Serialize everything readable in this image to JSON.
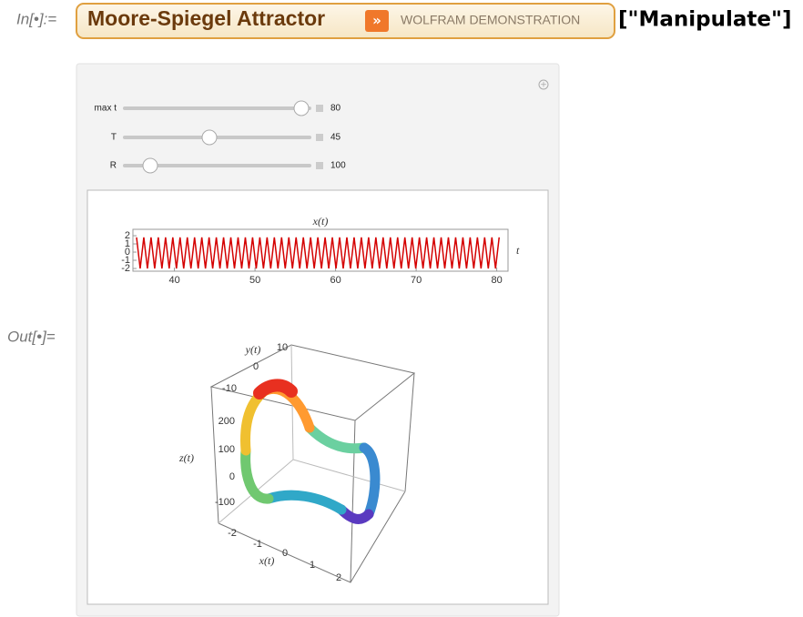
{
  "input_label": "In[•]:=",
  "button": {
    "title": "Moore-Spiegel Attractor",
    "tag": "WOLFRAM DEMONSTRATION"
  },
  "suffix": "[\"Manipulate\"]",
  "controls": [
    {
      "label": "max t",
      "value": 80
    },
    {
      "label": "T",
      "value": 45
    },
    {
      "label": "R",
      "value": 100
    }
  ],
  "output_label": "Out[•]=",
  "chart_data": {
    "type": "line",
    "title": "x(t)",
    "x_label": "t",
    "color": "#d40000",
    "x": [
      35.3,
      35.75,
      36.2,
      36.65,
      37.1,
      37.55,
      38,
      38.45,
      38.9,
      39.35,
      39.8,
      40.25,
      40.7,
      41.15,
      41.6,
      42.05,
      42.5,
      42.95,
      43.4,
      43.85,
      44.3,
      44.75,
      45.2,
      45.65,
      46.1,
      46.55,
      47,
      47.45,
      47.9,
      48.35,
      48.8,
      49.25,
      49.7,
      50.15,
      50.6,
      51.05,
      51.5,
      51.95,
      52.4,
      52.85,
      53.3,
      53.75,
      54.2,
      54.65,
      55.1,
      55.55,
      56,
      56.45,
      56.9,
      57.35,
      57.8,
      58.25,
      58.7,
      59.15,
      59.6,
      60.05,
      60.5,
      60.95,
      61.4,
      61.85,
      62.3,
      62.75,
      63.2,
      63.65,
      64.1,
      64.55,
      65,
      65.45,
      65.9,
      66.35,
      66.8,
      67.25,
      67.7,
      68.15,
      68.6,
      69.05,
      69.5,
      69.95,
      70.4,
      70.85,
      71.3,
      71.75,
      72.2,
      72.65,
      73.1,
      73.55,
      74,
      74.45,
      74.9,
      75.35,
      75.8,
      76.25,
      76.7,
      77.15,
      77.6,
      78.05,
      78.5,
      78.95,
      79.4,
      79.85,
      80.3
    ],
    "values": [
      1.8,
      -2,
      1.8,
      -2,
      1.8,
      -2,
      1.8,
      -2,
      1.8,
      -2,
      1.8,
      -2,
      1.8,
      -2,
      1.8,
      -2,
      1.8,
      -2,
      1.8,
      -2,
      1.8,
      -2,
      1.8,
      -2,
      1.8,
      -2,
      1.8,
      -2,
      1.8,
      -2,
      1.8,
      -2,
      1.8,
      -2,
      1.8,
      -2,
      1.8,
      -2,
      1.8,
      -2,
      1.8,
      -2,
      1.8,
      -2,
      1.8,
      -2,
      1.8,
      -2,
      1.8,
      -2,
      1.8,
      -2,
      1.8,
      -2,
      1.8,
      -2,
      1.8,
      -2,
      1.8,
      -2,
      1.8,
      -2,
      1.8,
      -2,
      1.8,
      -2,
      1.8,
      -2,
      1.8,
      -2,
      1.8,
      -2,
      1.8,
      -2,
      1.8,
      -2,
      1.8,
      -2,
      1.8,
      -2,
      1.8,
      -2,
      1.8,
      -2,
      1.8,
      -2,
      1.8,
      -2,
      1.8,
      -2,
      1.8,
      -2,
      1.8,
      -2,
      1.8,
      -2,
      1.8,
      -2,
      1.8,
      -2,
      1.8
    ],
    "xlim": [
      34.85,
      81.4
    ],
    "ylim": [
      -2.33,
      2.78
    ],
    "xticks": [
      40,
      50,
      60,
      70,
      80
    ],
    "yticks": [
      -2,
      -1,
      0,
      1,
      2
    ]
  },
  "plot3d": {
    "x_label": "x(t)",
    "y_label": "y(t)",
    "z_label": "z(t)",
    "x_ticks": [
      -2,
      -1,
      0,
      1,
      2
    ],
    "y_ticks": [
      10,
      0,
      -10
    ],
    "z_ticks": [
      200,
      100,
      0,
      -100
    ]
  }
}
